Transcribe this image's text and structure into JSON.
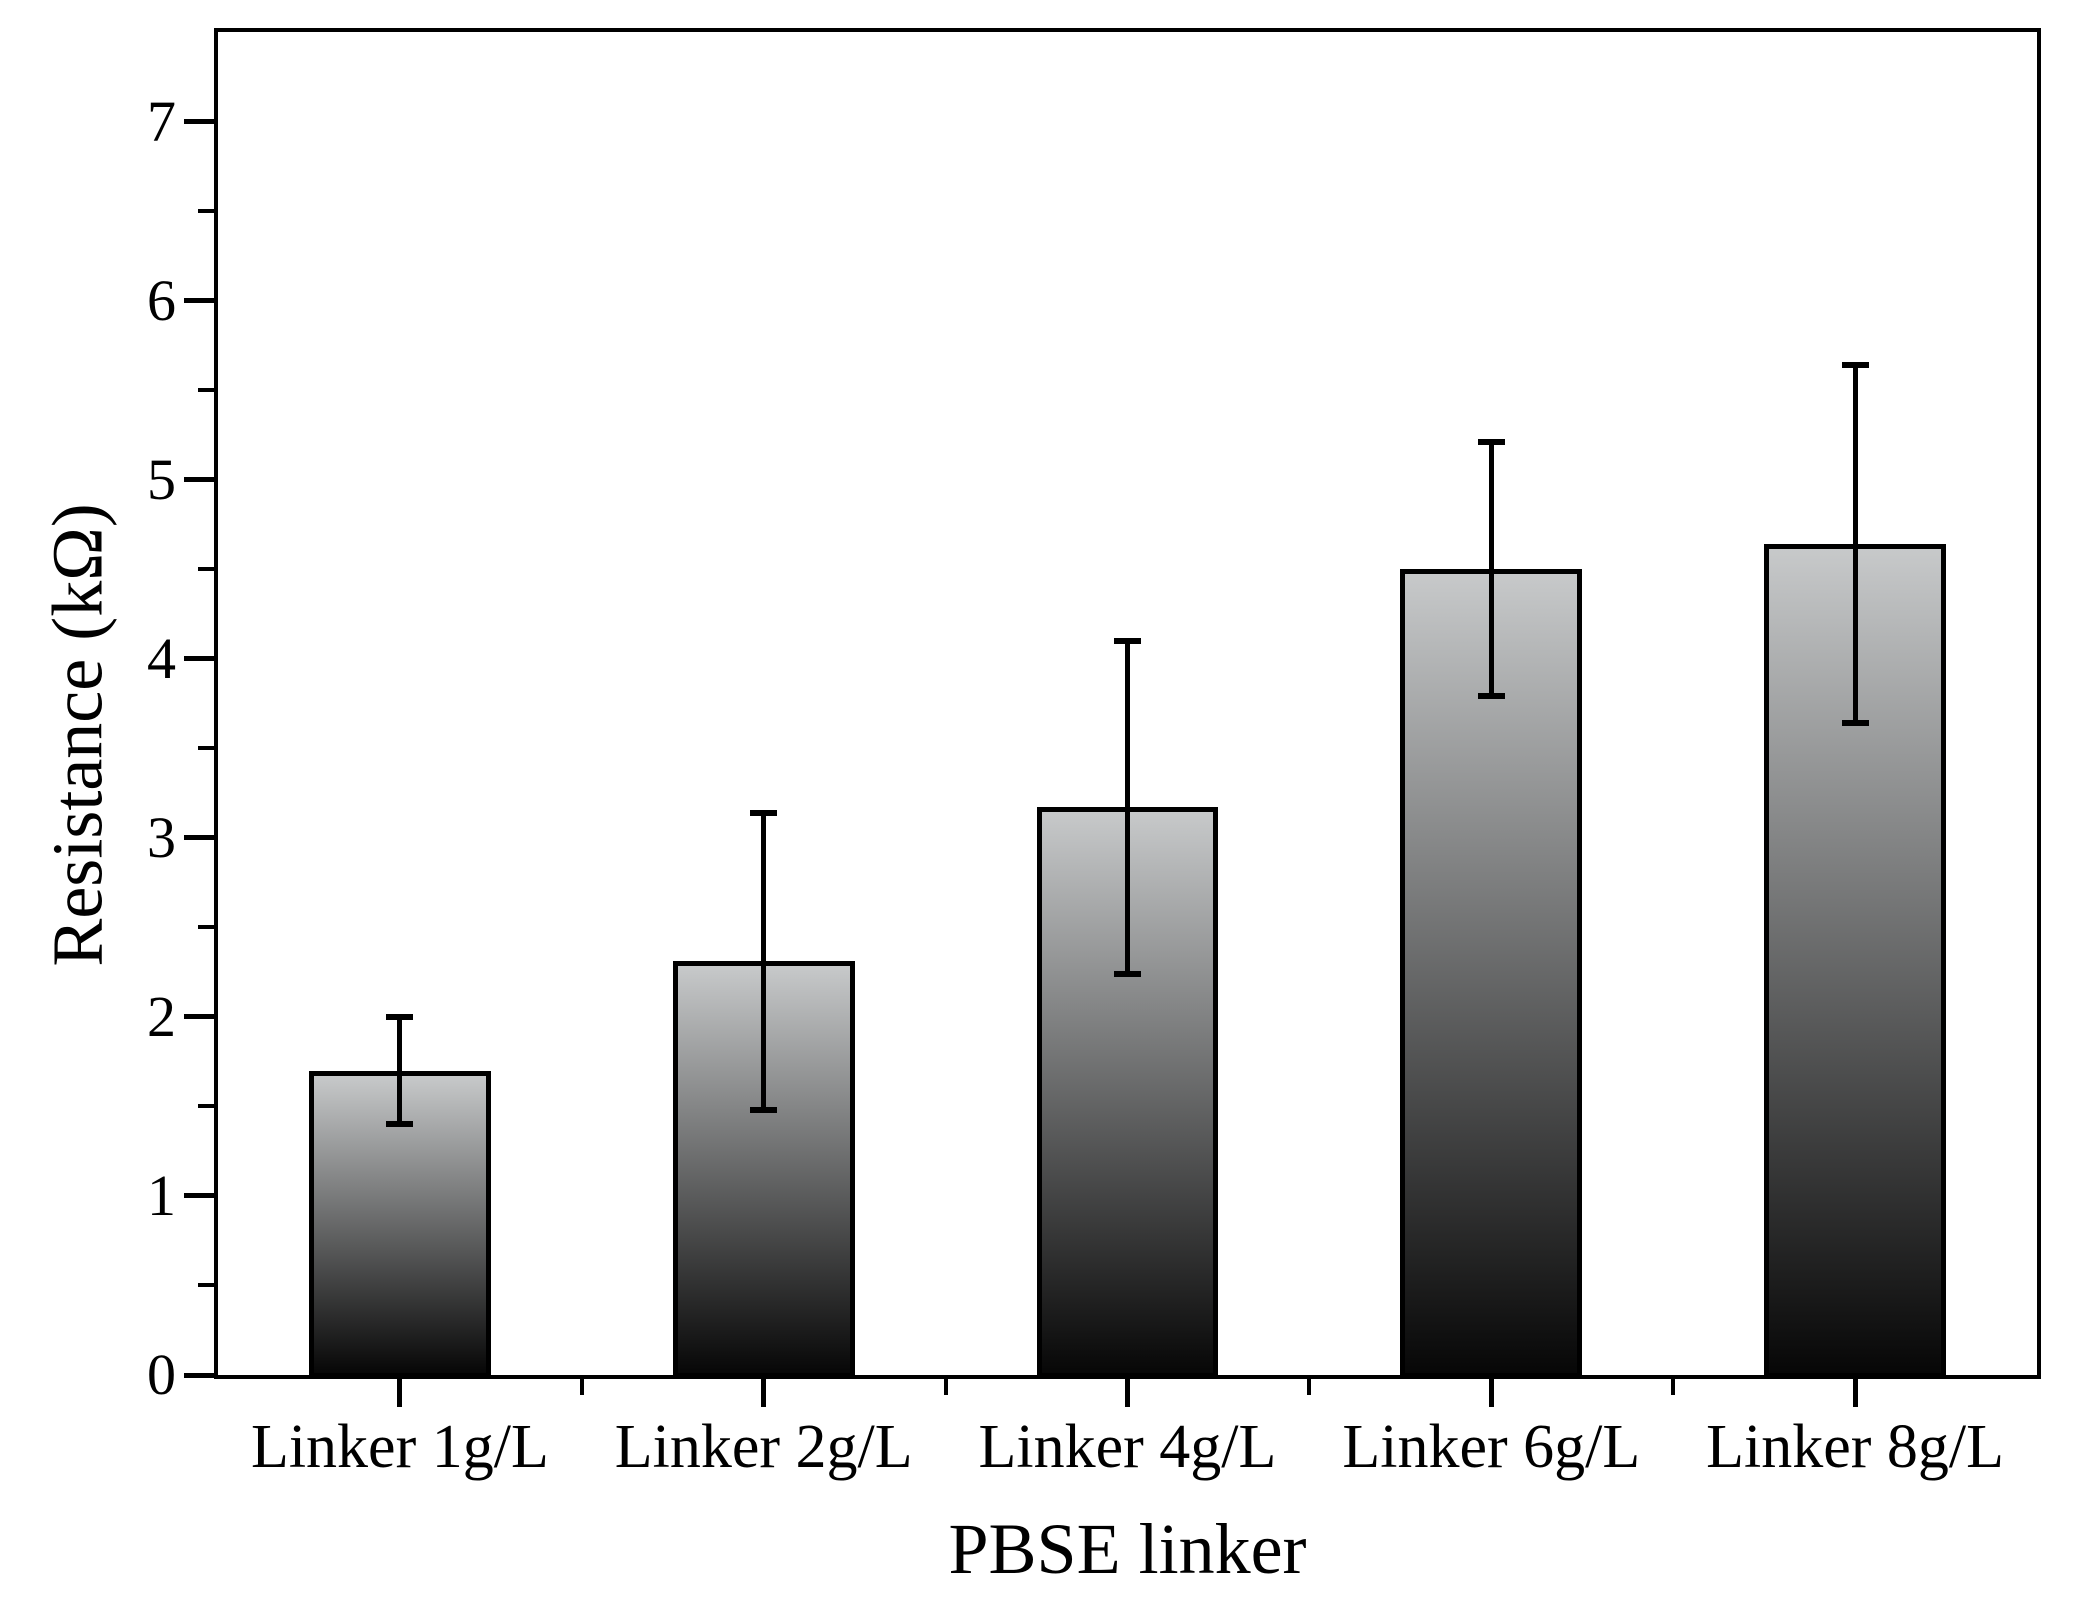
{
  "chart_data": {
    "type": "bar",
    "title": "",
    "xlabel": "PBSE linker",
    "ylabel": "Resistance (kΩ)",
    "categories": [
      "Linker 1g/L",
      "Linker 2g/L",
      "Linker 4g/L",
      "Linker 6g/L",
      "Linker 8g/L"
    ],
    "values": [
      1.7,
      2.31,
      3.17,
      4.5,
      4.64
    ],
    "errors": [
      0.3,
      0.83,
      0.93,
      0.71,
      1.0
    ],
    "error_bar_style": "symmetric-caps",
    "ylim": [
      0,
      7.5
    ],
    "y_major_ticks": [
      0,
      1,
      2,
      3,
      4,
      5,
      6,
      7
    ],
    "y_major_tick_labels": [
      "0",
      "1",
      "2",
      "3",
      "4",
      "5",
      "6",
      "7"
    ],
    "y_minor_tick_step": 0.5,
    "x_minor_ticks_between_categories": true,
    "grid": false,
    "legend": "none",
    "colors": {
      "background": "#ffffff",
      "axis": "#000000",
      "text": "#000000",
      "bar_border": "#000000",
      "bar_gradient_top": "#c7c9ca",
      "bar_gradient_bottom": "#070707"
    }
  }
}
